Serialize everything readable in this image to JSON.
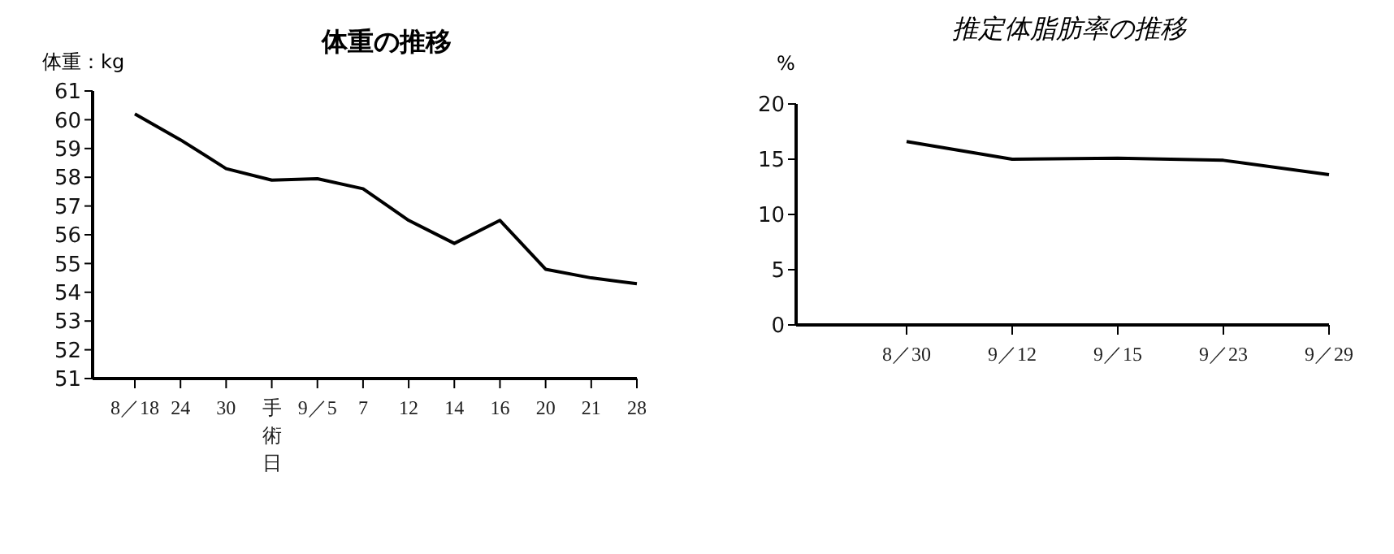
{
  "chart_data": [
    {
      "type": "line",
      "title": "体重の推移",
      "ylabel": "体重：kg",
      "categories": [
        "8／18",
        "24",
        "30",
        "手術日",
        "9／5",
        "7",
        "12",
        "14",
        "16",
        "20",
        "21",
        "28"
      ],
      "series": [
        {
          "color": "#000000",
          "values": [
            60.2,
            59.3,
            58.3,
            57.9,
            57.95,
            57.6,
            56.5,
            55.7,
            56.5,
            54.8,
            54.5,
            54.3
          ]
        }
      ],
      "ylim": [
        51,
        61
      ],
      "yticks": [
        51,
        52,
        53,
        54,
        55,
        56,
        57,
        58,
        59,
        60,
        61
      ],
      "grid": false,
      "legend": false,
      "marker": "none",
      "line_style": "solid"
    },
    {
      "type": "line",
      "title": "推定体脂肪率の推移",
      "ylabel": "%",
      "categories": [
        "8／30",
        "9／12",
        "9／15",
        "9／23",
        "9／29"
      ],
      "series": [
        {
          "color": "#000000",
          "values": [
            16.6,
            15.0,
            15.1,
            14.9,
            13.6
          ]
        }
      ],
      "ylim": [
        0,
        20
      ],
      "yticks": [
        0,
        5,
        10,
        15,
        20
      ],
      "grid": false,
      "legend": false,
      "marker": "none",
      "line_style": "solid"
    }
  ]
}
